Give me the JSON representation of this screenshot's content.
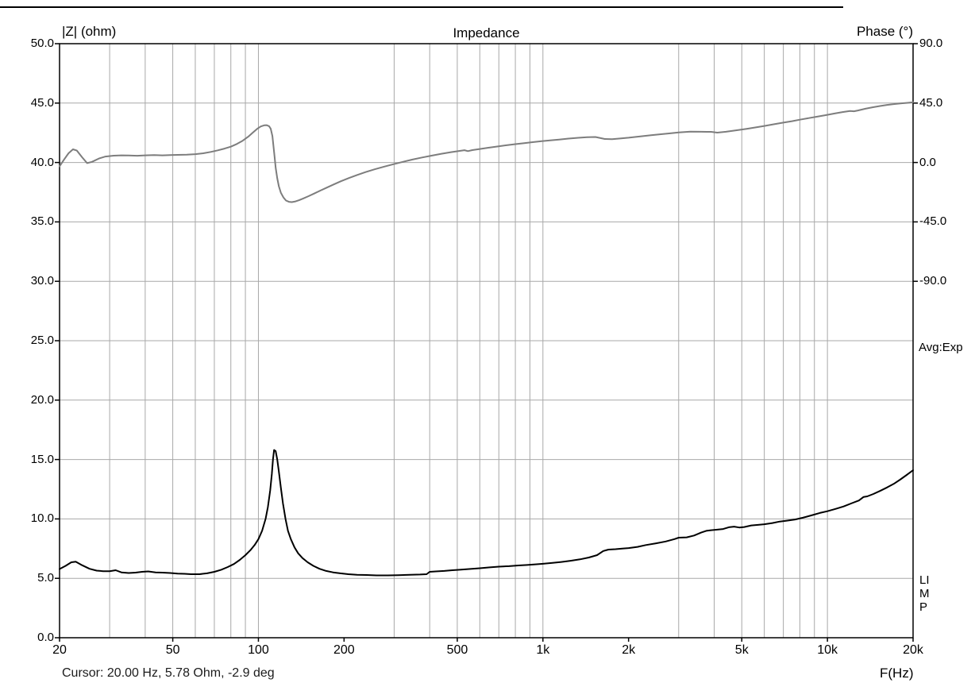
{
  "chart": {
    "title": "Impedance",
    "left_axis_label": "|Z| (ohm)",
    "right_axis_label": "Phase (°)",
    "x_axis_label": "F(Hz)",
    "averaging_status": "Avg:Exp",
    "program_label": "LIMP",
    "cursor_readout": "Cursor: 20.00 Hz, 5.78 Ohm, -2.9 deg"
  },
  "colors": {
    "impedance_curve": "#000000",
    "phase_curve": "#7d7d7d",
    "grid": "#a8a8a8",
    "plot_border": "#000000",
    "background": "#ffffff"
  },
  "chart_data": {
    "type": "line",
    "title": "Impedance",
    "x_axis": {
      "label": "F(Hz)",
      "scale": "log",
      "min": 20,
      "max": 20000,
      "ticks": [
        {
          "value": 20,
          "label": "20"
        },
        {
          "value": 50,
          "label": "50"
        },
        {
          "value": 100,
          "label": "100"
        },
        {
          "value": 200,
          "label": "200"
        },
        {
          "value": 500,
          "label": "500"
        },
        {
          "value": 1000,
          "label": "1k"
        },
        {
          "value": 2000,
          "label": "2k"
        },
        {
          "value": 5000,
          "label": "5k"
        },
        {
          "value": 10000,
          "label": "10k"
        },
        {
          "value": 20000,
          "label": "20k"
        }
      ]
    },
    "y_left_axis": {
      "label": "|Z| (ohm)",
      "min": 0,
      "max": 50,
      "ticks": [
        {
          "value": 50,
          "label": "50.0"
        },
        {
          "value": 45,
          "label": "45.0"
        },
        {
          "value": 40,
          "label": "40.0"
        },
        {
          "value": 35,
          "label": "35.0"
        },
        {
          "value": 30,
          "label": "30.0"
        },
        {
          "value": 25,
          "label": "25.0"
        },
        {
          "value": 20,
          "label": "20.0"
        },
        {
          "value": 15,
          "label": "15.0"
        },
        {
          "value": 10,
          "label": "10.0"
        },
        {
          "value": 5,
          "label": "5.0"
        },
        {
          "value": 0,
          "label": "0.0"
        }
      ]
    },
    "y_right_axis": {
      "label": "Phase (°)",
      "degrees_per_division": 45,
      "ticks": [
        {
          "value": 90,
          "label": "90.0"
        },
        {
          "value": 45,
          "label": "45.0"
        },
        {
          "value": 0,
          "label": "0.0"
        },
        {
          "value": -45,
          "label": "-45.0"
        },
        {
          "value": -90,
          "label": "-90.0"
        }
      ]
    },
    "grid": "on",
    "series": [
      {
        "name": "impedance_magnitude_ohm",
        "axis": "left",
        "color": "#000000",
        "points": [
          [
            20,
            5.78
          ],
          [
            21,
            6.05
          ],
          [
            22,
            6.35
          ],
          [
            22.8,
            6.4
          ],
          [
            24,
            6.1
          ],
          [
            25.5,
            5.8
          ],
          [
            27,
            5.65
          ],
          [
            28.5,
            5.6
          ],
          [
            30,
            5.6
          ],
          [
            31.5,
            5.68
          ],
          [
            33,
            5.5
          ],
          [
            35,
            5.45
          ],
          [
            37,
            5.48
          ],
          [
            39,
            5.55
          ],
          [
            41,
            5.58
          ],
          [
            43.5,
            5.5
          ],
          [
            46,
            5.48
          ],
          [
            49,
            5.45
          ],
          [
            52,
            5.4
          ],
          [
            55,
            5.38
          ],
          [
            58,
            5.35
          ],
          [
            62,
            5.35
          ],
          [
            66,
            5.42
          ],
          [
            70,
            5.55
          ],
          [
            74,
            5.72
          ],
          [
            78,
            5.95
          ],
          [
            82,
            6.2
          ],
          [
            86,
            6.55
          ],
          [
            90,
            6.95
          ],
          [
            94,
            7.4
          ],
          [
            97,
            7.8
          ],
          [
            100,
            8.3
          ],
          [
            103,
            9.0
          ],
          [
            106,
            10.0
          ],
          [
            108,
            11.0
          ],
          [
            110,
            12.4
          ],
          [
            111.5,
            13.8
          ],
          [
            112.5,
            15.0
          ],
          [
            113.5,
            15.8
          ],
          [
            115,
            15.7
          ],
          [
            116.5,
            15.0
          ],
          [
            118,
            14.0
          ],
          [
            120,
            12.6
          ],
          [
            122,
            11.3
          ],
          [
            124.5,
            10.0
          ],
          [
            127,
            9.0
          ],
          [
            130,
            8.3
          ],
          [
            134,
            7.6
          ],
          [
            138,
            7.1
          ],
          [
            143,
            6.7
          ],
          [
            149,
            6.35
          ],
          [
            156,
            6.05
          ],
          [
            164,
            5.8
          ],
          [
            173,
            5.62
          ],
          [
            183,
            5.5
          ],
          [
            194,
            5.42
          ],
          [
            207,
            5.35
          ],
          [
            222,
            5.3
          ],
          [
            240,
            5.28
          ],
          [
            260,
            5.25
          ],
          [
            285,
            5.25
          ],
          [
            310,
            5.27
          ],
          [
            340,
            5.3
          ],
          [
            370,
            5.32
          ],
          [
            390,
            5.35
          ],
          [
            400,
            5.55
          ],
          [
            420,
            5.58
          ],
          [
            450,
            5.62
          ],
          [
            480,
            5.68
          ],
          [
            510,
            5.72
          ],
          [
            550,
            5.78
          ],
          [
            600,
            5.85
          ],
          [
            650,
            5.92
          ],
          [
            700,
            5.98
          ],
          [
            760,
            6.02
          ],
          [
            820,
            6.08
          ],
          [
            880,
            6.12
          ],
          [
            950,
            6.18
          ],
          [
            1000,
            6.22
          ],
          [
            1080,
            6.3
          ],
          [
            1160,
            6.38
          ],
          [
            1250,
            6.48
          ],
          [
            1350,
            6.6
          ],
          [
            1450,
            6.75
          ],
          [
            1550,
            6.95
          ],
          [
            1630,
            7.3
          ],
          [
            1700,
            7.42
          ],
          [
            1800,
            7.45
          ],
          [
            1900,
            7.5
          ],
          [
            2000,
            7.55
          ],
          [
            2150,
            7.65
          ],
          [
            2300,
            7.8
          ],
          [
            2500,
            7.95
          ],
          [
            2700,
            8.1
          ],
          [
            2900,
            8.3
          ],
          [
            3000,
            8.42
          ],
          [
            3200,
            8.45
          ],
          [
            3400,
            8.6
          ],
          [
            3600,
            8.85
          ],
          [
            3750,
            9.0
          ],
          [
            3900,
            9.05
          ],
          [
            4100,
            9.1
          ],
          [
            4300,
            9.15
          ],
          [
            4500,
            9.3
          ],
          [
            4700,
            9.35
          ],
          [
            4900,
            9.28
          ],
          [
            5100,
            9.32
          ],
          [
            5400,
            9.45
          ],
          [
            5700,
            9.5
          ],
          [
            6000,
            9.55
          ],
          [
            6400,
            9.65
          ],
          [
            6800,
            9.78
          ],
          [
            7200,
            9.85
          ],
          [
            7700,
            9.95
          ],
          [
            8200,
            10.1
          ],
          [
            8800,
            10.3
          ],
          [
            9400,
            10.5
          ],
          [
            10000,
            10.65
          ],
          [
            10700,
            10.85
          ],
          [
            11400,
            11.05
          ],
          [
            12100,
            11.3
          ],
          [
            12900,
            11.55
          ],
          [
            13400,
            11.85
          ],
          [
            13800,
            11.9
          ],
          [
            14500,
            12.1
          ],
          [
            15300,
            12.35
          ],
          [
            16200,
            12.65
          ],
          [
            17100,
            12.95
          ],
          [
            18000,
            13.3
          ],
          [
            19000,
            13.7
          ],
          [
            20000,
            14.1
          ]
        ]
      },
      {
        "name": "phase_deg",
        "axis": "right",
        "color": "#7d7d7d",
        "points": [
          [
            20,
            -2.9
          ],
          [
            20.7,
            2
          ],
          [
            21.5,
            7
          ],
          [
            22.3,
            10
          ],
          [
            23,
            9
          ],
          [
            24,
            4
          ],
          [
            25,
            -0.5
          ],
          [
            26,
            0.5
          ],
          [
            27.5,
            3
          ],
          [
            29,
            4.5
          ],
          [
            31,
            5.2
          ],
          [
            33,
            5.4
          ],
          [
            35,
            5.3
          ],
          [
            37.5,
            5.1
          ],
          [
            40,
            5.4
          ],
          [
            43,
            5.6
          ],
          [
            46,
            5.4
          ],
          [
            49,
            5.6
          ],
          [
            52,
            5.8
          ],
          [
            56,
            5.9
          ],
          [
            60,
            6.3
          ],
          [
            64,
            7
          ],
          [
            68,
            8
          ],
          [
            72,
            9.2
          ],
          [
            76,
            10.5
          ],
          [
            80,
            12
          ],
          [
            84,
            14
          ],
          [
            88,
            16.5
          ],
          [
            92,
            19.5
          ],
          [
            96,
            23
          ],
          [
            99,
            25.5
          ],
          [
            102,
            27.3
          ],
          [
            105,
            28.2
          ],
          [
            107,
            28.3
          ],
          [
            109,
            27.5
          ],
          [
            110.5,
            25.5
          ],
          [
            112,
            20
          ],
          [
            113,
            12
          ],
          [
            114,
            4
          ],
          [
            115,
            -4
          ],
          [
            116.5,
            -12
          ],
          [
            118,
            -18
          ],
          [
            120,
            -23
          ],
          [
            122.5,
            -26.5
          ],
          [
            125,
            -28.8
          ],
          [
            128,
            -29.8
          ],
          [
            131,
            -30
          ],
          [
            135,
            -29.5
          ],
          [
            139,
            -28.6
          ],
          [
            144,
            -27.2
          ],
          [
            150,
            -25.5
          ],
          [
            157,
            -23.5
          ],
          [
            165,
            -21.3
          ],
          [
            174,
            -19
          ],
          [
            184,
            -16.6
          ],
          [
            195,
            -14.2
          ],
          [
            208,
            -11.8
          ],
          [
            222,
            -9.5
          ],
          [
            238,
            -7.3
          ],
          [
            256,
            -5.2
          ],
          [
            276,
            -3.2
          ],
          [
            298,
            -1.3
          ],
          [
            322,
            0.5
          ],
          [
            348,
            2.2
          ],
          [
            376,
            3.8
          ],
          [
            406,
            5.2
          ],
          [
            440,
            6.6
          ],
          [
            475,
            7.8
          ],
          [
            510,
            8.8
          ],
          [
            530,
            9.3
          ],
          [
            545,
            8.6
          ],
          [
            565,
            9.4
          ],
          [
            600,
            10.2
          ],
          [
            640,
            11.1
          ],
          [
            690,
            12.1
          ],
          [
            740,
            13
          ],
          [
            800,
            13.9
          ],
          [
            860,
            14.7
          ],
          [
            920,
            15.4
          ],
          [
            990,
            16.1
          ],
          [
            1060,
            16.8
          ],
          [
            1140,
            17.4
          ],
          [
            1230,
            18.1
          ],
          [
            1330,
            18.7
          ],
          [
            1430,
            19.2
          ],
          [
            1530,
            19.3
          ],
          [
            1650,
            17.8
          ],
          [
            1750,
            17.6
          ],
          [
            1850,
            18.1
          ],
          [
            2000,
            18.8
          ],
          [
            2200,
            19.8
          ],
          [
            2400,
            20.7
          ],
          [
            2600,
            21.4
          ],
          [
            2800,
            22.1
          ],
          [
            3000,
            22.8
          ],
          [
            3300,
            23.4
          ],
          [
            3600,
            23.3
          ],
          [
            3900,
            23.2
          ],
          [
            4100,
            22.6
          ],
          [
            4400,
            23.3
          ],
          [
            4800,
            24.4
          ],
          [
            5200,
            25.5
          ],
          [
            5600,
            26.6
          ],
          [
            6000,
            27.7
          ],
          [
            6500,
            29
          ],
          [
            7000,
            30.2
          ],
          [
            7500,
            31.3
          ],
          [
            8000,
            32.4
          ],
          [
            8600,
            33.6
          ],
          [
            9200,
            34.7
          ],
          [
            9900,
            35.9
          ],
          [
            10600,
            37.1
          ],
          [
            11300,
            38.2
          ],
          [
            12000,
            39
          ],
          [
            12400,
            38.8
          ],
          [
            12800,
            39.4
          ],
          [
            13600,
            40.7
          ],
          [
            14400,
            41.8
          ],
          [
            15300,
            42.8
          ],
          [
            16200,
            43.6
          ],
          [
            17200,
            44.3
          ],
          [
            18200,
            44.8
          ],
          [
            19100,
            45.2
          ],
          [
            20000,
            45.6
          ]
        ]
      }
    ],
    "annotations": [
      "Avg:Exp",
      "LIMP",
      "Cursor: 20.00 Hz, 5.78 Ohm, -2.9 deg"
    ]
  }
}
